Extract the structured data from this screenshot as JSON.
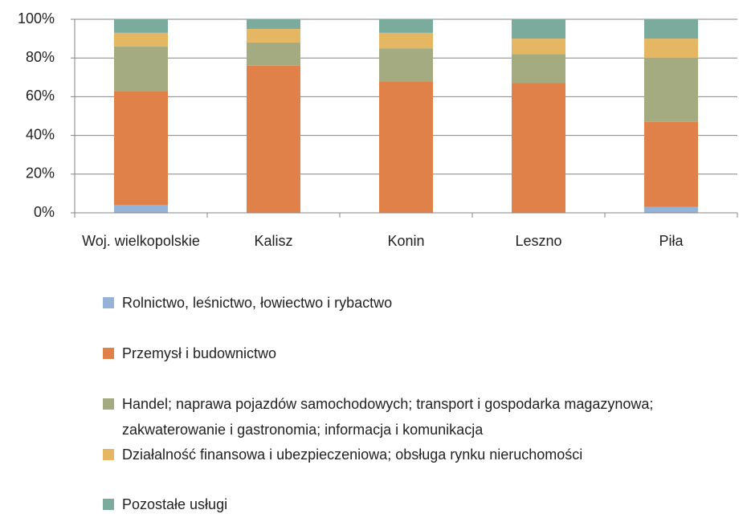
{
  "chart_data": {
    "type": "stacked_bar",
    "categories": [
      "Woj. wielkopolskie",
      "Kalisz",
      "Konin",
      "Leszno",
      "Piła"
    ],
    "series": [
      {
        "name": "Rolnictwo, leśnictwo, łowiectwo i rybactwo",
        "color": "#95b3d7",
        "values": [
          4,
          0,
          0,
          0,
          3
        ]
      },
      {
        "name": "Przemysł i budownictwo",
        "color": "#e0814a",
        "values": [
          59,
          76,
          68,
          67,
          44
        ]
      },
      {
        "name": "Handel; naprawa pojazdów samochodowych; transport i gospodarka magazynowa; zakwaterowanie i gastronomia; informacja i komunikacja",
        "color": "#a4ab80",
        "values": [
          23,
          12,
          17,
          15,
          33
        ]
      },
      {
        "name": "Działalność finansowa i ubezpieczeniowa; obsługa rynku nieruchomości",
        "color": "#e6b763",
        "values": [
          7,
          7,
          8,
          8,
          10
        ]
      },
      {
        "name": "Pozostałe usługi",
        "color": "#7bab9d",
        "values": [
          7,
          5,
          7,
          10,
          10
        ]
      }
    ],
    "ylim": [
      0,
      100
    ],
    "yticks": [
      {
        "value": 0,
        "label": "0%"
      },
      {
        "value": 20,
        "label": "20%"
      },
      {
        "value": 40,
        "label": "40%"
      },
      {
        "value": 60,
        "label": "60%"
      },
      {
        "value": 80,
        "label": "80%"
      },
      {
        "value": 100,
        "label": "100%"
      }
    ],
    "grid": true,
    "legend": "bottom"
  }
}
